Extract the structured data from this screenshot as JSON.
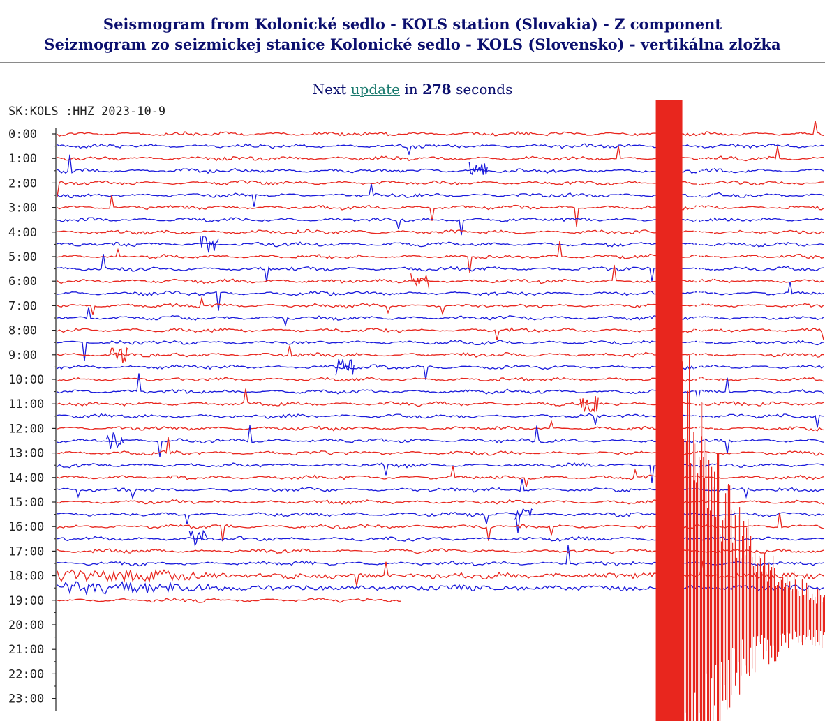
{
  "header": {
    "title_en": "Seismogram from Kolonické sedlo - KOLS station (Slovakia) - Z component",
    "title_sk": "Seizmogram zo seizmickej stanice Kolonické sedlo - KOLS (Slovensko) - vertikálna zložka"
  },
  "update": {
    "prefix": "Next",
    "link_label": "update",
    "middle": "in",
    "seconds": "278",
    "suffix": "seconds"
  },
  "chart_data": {
    "type": "line",
    "title": "SK:KOLS :HHZ   2023-10-9",
    "date": "2023-10-9",
    "station": "SK:KOLS :HHZ",
    "y_tick_labels": [
      "0:00",
      "1:00",
      "2:00",
      "3:00",
      "4:00",
      "5:00",
      "6:00",
      "7:00",
      "8:00",
      "9:00",
      "10:00",
      "11:00",
      "12:00",
      "13:00",
      "14:00",
      "15:00",
      "16:00",
      "17:00",
      "18:00",
      "19:00",
      "20:00",
      "21:00",
      "22:00",
      "23:00"
    ],
    "traces_per_hour": 2,
    "trace_colors": [
      "#e8261e",
      "#1a1adb"
    ],
    "recorded_until": "19:00",
    "large_event_start_fraction": 0.78,
    "grid": false,
    "legend": "none"
  }
}
